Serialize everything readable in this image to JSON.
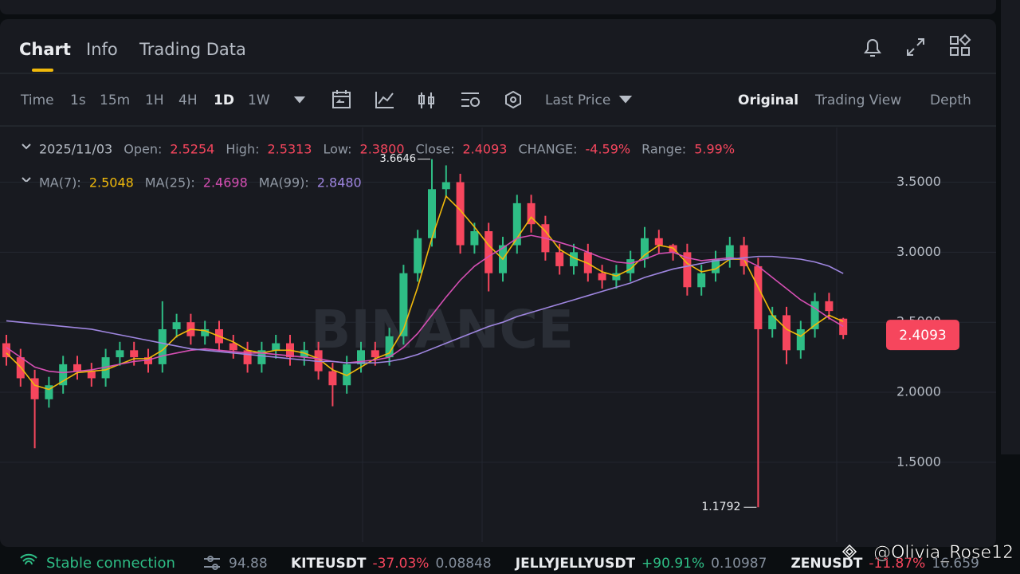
{
  "tabs": [
    "Chart",
    "Info",
    "Trading Data"
  ],
  "intervals": [
    "Time",
    "1s",
    "15m",
    "1H",
    "4H",
    "1D",
    "1W"
  ],
  "price_type": "Last Price",
  "views": [
    "Original",
    "Trading View",
    "Depth"
  ],
  "ohlc_legend": {
    "date": "2025/11/03",
    "items": [
      {
        "label": "Open:",
        "value": "2.5254"
      },
      {
        "label": "High:",
        "value": "2.5313"
      },
      {
        "label": "Low:",
        "value": "2.3800"
      },
      {
        "label": "Close:",
        "value": "2.4093"
      },
      {
        "label": "CHANGE:",
        "value": "-4.59%"
      },
      {
        "label": "Range:",
        "value": "5.99%"
      }
    ]
  },
  "ma_legend": [
    {
      "label": "MA(7):",
      "value": "2.5048"
    },
    {
      "label": "MA(25):",
      "value": "2.4698"
    },
    {
      "label": "MA(99):",
      "value": "2.8480"
    }
  ],
  "watermark": "BINANCE",
  "status": {
    "connection": "Stable connection",
    "latency": "94.88"
  },
  "tickers": [
    {
      "symbol": "KITEUSDT",
      "change": "-37.03%",
      "price": "0.08848"
    },
    {
      "symbol": "JELLYJELLYUSDT",
      "change": "+90.91%",
      "price": "0.10987"
    },
    {
      "symbol": "ZENUSDT",
      "change": "-11.87%",
      "price": "16.659"
    }
  ],
  "user_watermark": "@Olivia_Rose12",
  "chart_data": {
    "type": "candlestick",
    "up_color": "#2ebd85",
    "down_color": "#f6465d",
    "open": [
      2.35,
      2.25,
      2.1,
      1.95,
      2.05,
      2.2,
      2.15,
      2.1,
      2.25,
      2.3,
      2.25,
      2.2,
      2.45,
      2.5,
      2.4,
      2.45,
      2.35,
      2.3,
      2.2,
      2.3,
      2.35,
      2.25,
      2.3,
      2.15,
      2.05,
      2.2,
      2.3,
      2.25,
      2.4,
      2.85,
      3.1,
      3.45,
      3.5,
      3.05,
      3.15,
      2.85,
      3.05,
      3.35,
      3.2,
      3.0,
      2.9,
      3.0,
      2.85,
      2.8,
      2.85,
      2.95,
      3.1,
      3.05,
      3.0,
      2.75,
      2.85,
      2.95,
      3.05,
      2.9,
      2.45,
      2.55,
      2.3,
      2.45,
      2.65,
      2.5254
    ],
    "high": [
      2.41,
      2.31,
      2.16,
      2.11,
      2.26,
      2.26,
      2.21,
      2.31,
      2.36,
      2.36,
      2.31,
      2.65,
      2.56,
      2.56,
      2.51,
      2.51,
      2.41,
      2.36,
      2.36,
      2.41,
      2.41,
      2.36,
      2.36,
      2.21,
      2.26,
      2.36,
      2.36,
      2.46,
      2.91,
      3.16,
      3.6646,
      3.62,
      3.56,
      3.21,
      3.21,
      3.11,
      3.41,
      3.41,
      3.26,
      3.06,
      3.06,
      3.06,
      2.91,
      2.91,
      3.01,
      3.18,
      3.16,
      3.06,
      3.06,
      2.91,
      3.01,
      3.11,
      3.11,
      2.96,
      2.61,
      2.61,
      2.51,
      2.71,
      2.71,
      2.5313
    ],
    "low": [
      2.19,
      2.04,
      1.6,
      1.89,
      1.99,
      2.09,
      2.04,
      2.04,
      2.19,
      2.19,
      2.14,
      2.14,
      2.39,
      2.34,
      2.34,
      2.29,
      2.24,
      2.14,
      2.14,
      2.24,
      2.19,
      2.19,
      2.09,
      1.9,
      1.99,
      2.14,
      2.19,
      2.19,
      2.34,
      2.79,
      3.04,
      3.39,
      2.99,
      2.99,
      2.72,
      2.79,
      2.99,
      3.14,
      2.94,
      2.84,
      2.84,
      2.79,
      2.74,
      2.74,
      2.79,
      2.89,
      2.99,
      2.94,
      2.69,
      2.69,
      2.79,
      2.89,
      2.84,
      1.1792,
      2.39,
      2.2,
      2.24,
      2.39,
      2.52,
      2.38
    ],
    "close": [
      2.25,
      2.1,
      1.95,
      2.05,
      2.2,
      2.15,
      2.1,
      2.25,
      2.3,
      2.25,
      2.2,
      2.45,
      2.5,
      2.4,
      2.45,
      2.35,
      2.3,
      2.2,
      2.3,
      2.35,
      2.25,
      2.3,
      2.15,
      2.05,
      2.2,
      2.3,
      2.25,
      2.4,
      2.85,
      3.1,
      3.45,
      3.5,
      3.05,
      3.15,
      2.85,
      3.05,
      3.35,
      3.2,
      3.0,
      2.9,
      3.0,
      2.85,
      2.8,
      2.85,
      2.95,
      3.1,
      3.05,
      3.0,
      2.75,
      2.85,
      2.95,
      3.05,
      2.9,
      2.45,
      2.55,
      2.3,
      2.45,
      2.65,
      2.58,
      2.4093
    ],
    "series": [
      {
        "name": "MA(7)",
        "color": "#f0b90b",
        "values": [
          2.28,
          2.18,
          2.05,
          2.02,
          2.08,
          2.14,
          2.15,
          2.16,
          2.2,
          2.24,
          2.24,
          2.3,
          2.4,
          2.45,
          2.44,
          2.4,
          2.36,
          2.3,
          2.28,
          2.3,
          2.3,
          2.28,
          2.24,
          2.16,
          2.12,
          2.18,
          2.24,
          2.28,
          2.45,
          2.75,
          3.1,
          3.4,
          3.3,
          3.18,
          3.05,
          2.95,
          3.1,
          3.25,
          3.15,
          3.02,
          2.96,
          2.92,
          2.86,
          2.83,
          2.88,
          2.98,
          3.05,
          3.03,
          2.92,
          2.86,
          2.88,
          2.95,
          2.95,
          2.75,
          2.55,
          2.45,
          2.4,
          2.48,
          2.55,
          2.5048
        ]
      },
      {
        "name": "MA(25)",
        "color": "#d64fb4",
        "values": [
          2.32,
          2.25,
          2.18,
          2.15,
          2.14,
          2.15,
          2.16,
          2.18,
          2.2,
          2.22,
          2.23,
          2.26,
          2.28,
          2.3,
          2.31,
          2.3,
          2.29,
          2.28,
          2.28,
          2.27,
          2.26,
          2.25,
          2.24,
          2.22,
          2.21,
          2.22,
          2.23,
          2.25,
          2.32,
          2.42,
          2.55,
          2.68,
          2.8,
          2.9,
          2.97,
          3.03,
          3.1,
          3.12,
          3.1,
          3.07,
          3.04,
          3.0,
          2.96,
          2.93,
          2.92,
          2.95,
          2.99,
          3.0,
          2.96,
          2.94,
          2.95,
          2.96,
          2.95,
          2.9,
          2.82,
          2.74,
          2.66,
          2.6,
          2.53,
          2.4698
        ]
      },
      {
        "name": "MA(99)",
        "color": "#9f86e0",
        "values": [
          2.51,
          2.5,
          2.49,
          2.48,
          2.47,
          2.46,
          2.45,
          2.43,
          2.41,
          2.39,
          2.37,
          2.35,
          2.33,
          2.31,
          2.3,
          2.29,
          2.28,
          2.27,
          2.26,
          2.25,
          2.24,
          2.23,
          2.22,
          2.22,
          2.21,
          2.21,
          2.21,
          2.22,
          2.24,
          2.27,
          2.31,
          2.35,
          2.39,
          2.43,
          2.47,
          2.5,
          2.54,
          2.57,
          2.6,
          2.63,
          2.66,
          2.69,
          2.72,
          2.75,
          2.78,
          2.82,
          2.85,
          2.88,
          2.9,
          2.92,
          2.94,
          2.95,
          2.96,
          2.97,
          2.97,
          2.96,
          2.95,
          2.93,
          2.9,
          2.848
        ]
      }
    ],
    "ylim": [
      0.93,
      3.89
    ],
    "yticks": [
      {
        "value": 1.5,
        "label": "1.5000"
      },
      {
        "value": 2.0,
        "label": "2.0000"
      },
      {
        "value": 2.5,
        "label": "2.5000"
      },
      {
        "value": 3.0,
        "label": "3.0000"
      },
      {
        "value": 3.5,
        "label": "3.5000"
      }
    ],
    "grid": true
  }
}
